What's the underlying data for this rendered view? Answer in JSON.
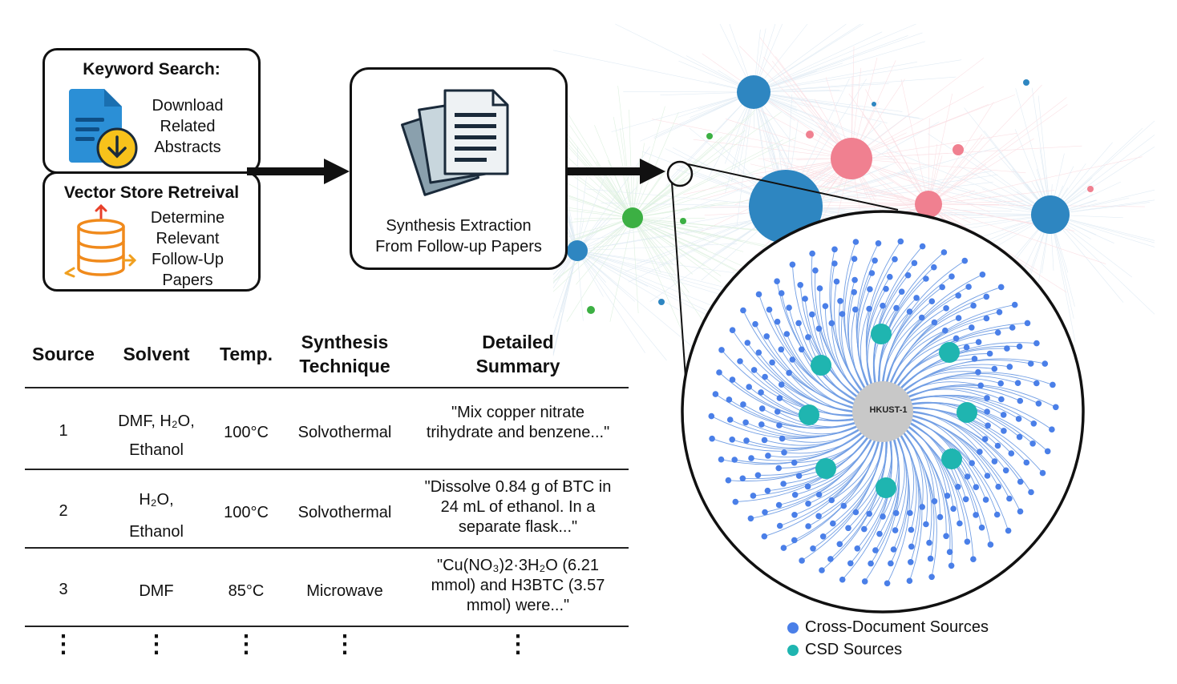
{
  "keyword_box": {
    "title": "Keyword Search:",
    "lines": [
      "Download",
      "Related",
      "Abstracts"
    ]
  },
  "vector_box": {
    "title": "Vector Store Retreival",
    "lines": [
      "Determine",
      "Relevant",
      "Follow-Up",
      "Papers"
    ]
  },
  "extraction_box": {
    "lines": [
      "Synthesis Extraction",
      "From Follow-up Papers"
    ]
  },
  "network": {
    "center_label": "HKUST-1"
  },
  "legend": {
    "items": [
      {
        "label": "Cross-Document Sources",
        "color": "#4a7fe8"
      },
      {
        "label": "CSD Sources",
        "color": "#1fb5b0"
      }
    ]
  },
  "table": {
    "headers": [
      [
        "Source"
      ],
      [
        "Solvent"
      ],
      [
        "Temp."
      ],
      [
        "Synthesis",
        "Technique"
      ],
      [
        "Detailed",
        "Summary"
      ]
    ],
    "rows": [
      {
        "source": "1",
        "solvent": [
          "DMF, H₂O,",
          "Ethanol"
        ],
        "temp": "100°C",
        "technique": "Solvothermal",
        "summary": [
          "\"Mix copper nitrate",
          "trihydrate and benzene...\""
        ]
      },
      {
        "source": "2",
        "solvent": [
          "H₂O,",
          "Ethanol"
        ],
        "temp": "100°C",
        "technique": "Solvothermal",
        "summary": [
          "\"Dissolve 0.84 g of BTC in",
          "24 mL of ethanol. In a",
          "separate flask...\""
        ]
      },
      {
        "source": "3",
        "solvent": [
          "DMF"
        ],
        "temp": "85°C",
        "technique": "Microwave",
        "summary": [
          "\"Cu(NO₃)2·3H₂O (6.21",
          "mmol) and H3BTC (3.57",
          "mmol) were...\""
        ]
      }
    ],
    "ellipsis": "⋮"
  },
  "colors": {
    "blue_node": "#2e86c1",
    "pink_node": "#f08090",
    "green_node": "#3cb043",
    "cross_doc": "#4a7fe8",
    "csd": "#1fb5b0"
  }
}
